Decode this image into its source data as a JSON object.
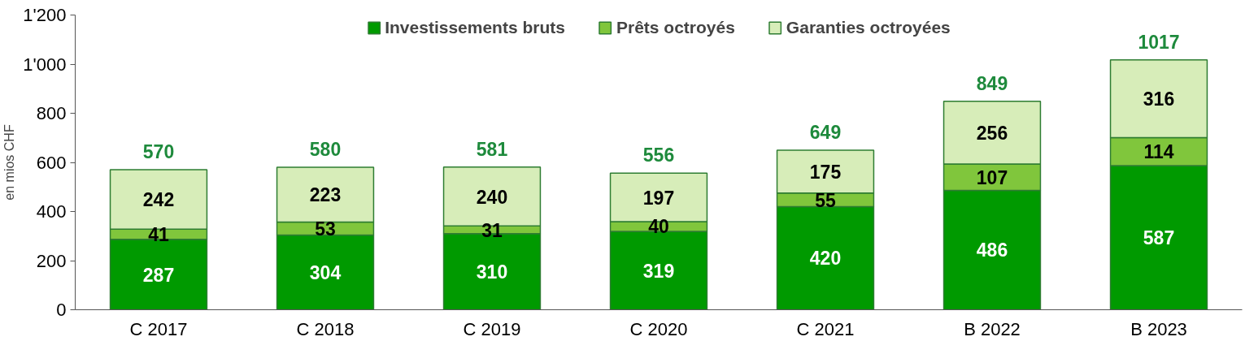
{
  "chart_data": {
    "type": "bar",
    "stacked": true,
    "ylabel": "en mios CHF",
    "categories": [
      "C 2017",
      "C 2018",
      "C 2019",
      "C 2020",
      "C 2021",
      "B 2022",
      "B 2023"
    ],
    "series": [
      {
        "name": "Investissements bruts",
        "color": "#009a00",
        "values": [
          287,
          304,
          310,
          319,
          420,
          486,
          587
        ]
      },
      {
        "name": "Prêts octroyés",
        "color": "#80c63c",
        "values": [
          41,
          53,
          31,
          40,
          55,
          107,
          114
        ]
      },
      {
        "name": "Garanties octroyées",
        "color": "#d7edb9",
        "values": [
          242,
          223,
          240,
          197,
          175,
          256,
          316
        ]
      }
    ],
    "totals": [
      "570",
      "580",
      "581",
      "556",
      "649",
      "849",
      "1017"
    ],
    "data_labels": true,
    "ylim": [
      0,
      1200
    ],
    "yticks": [
      0,
      200,
      400,
      600,
      800,
      {
        "value": 1000,
        "label": "1'000"
      },
      {
        "value": 1200,
        "label": "1'200"
      }
    ],
    "grid": false,
    "legend": "top"
  }
}
